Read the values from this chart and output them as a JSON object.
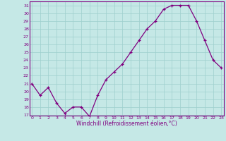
{
  "x": [
    0,
    1,
    2,
    3,
    4,
    5,
    6,
    7,
    8,
    9,
    10,
    11,
    12,
    13,
    14,
    15,
    16,
    17,
    18,
    19,
    20,
    21,
    22,
    23
  ],
  "y": [
    21.0,
    19.5,
    20.5,
    18.5,
    17.2,
    18.0,
    18.0,
    16.8,
    19.5,
    21.5,
    22.5,
    23.5,
    25.0,
    26.5,
    28.0,
    29.0,
    30.5,
    31.0,
    31.0,
    31.0,
    29.0,
    26.5,
    24.0,
    23.0
  ],
  "line_color": "#800080",
  "marker": "+",
  "bg_color": "#C5E8E6",
  "grid_color": "#9ECFCD",
  "xlabel": "Windchill (Refroidissement éolien,°C)",
  "ylim": [
    17,
    31.5
  ],
  "xlim": [
    0,
    23
  ],
  "yticks": [
    17,
    18,
    19,
    20,
    21,
    22,
    23,
    24,
    25,
    26,
    27,
    28,
    29,
    30,
    31
  ],
  "xticks": [
    0,
    1,
    2,
    3,
    4,
    5,
    6,
    7,
    8,
    9,
    10,
    11,
    12,
    13,
    14,
    15,
    16,
    17,
    18,
    19,
    20,
    21,
    22,
    23
  ],
  "tick_color": "#800080",
  "label_color": "#800080",
  "axis_color": "#800080",
  "spine_color": "#800080"
}
